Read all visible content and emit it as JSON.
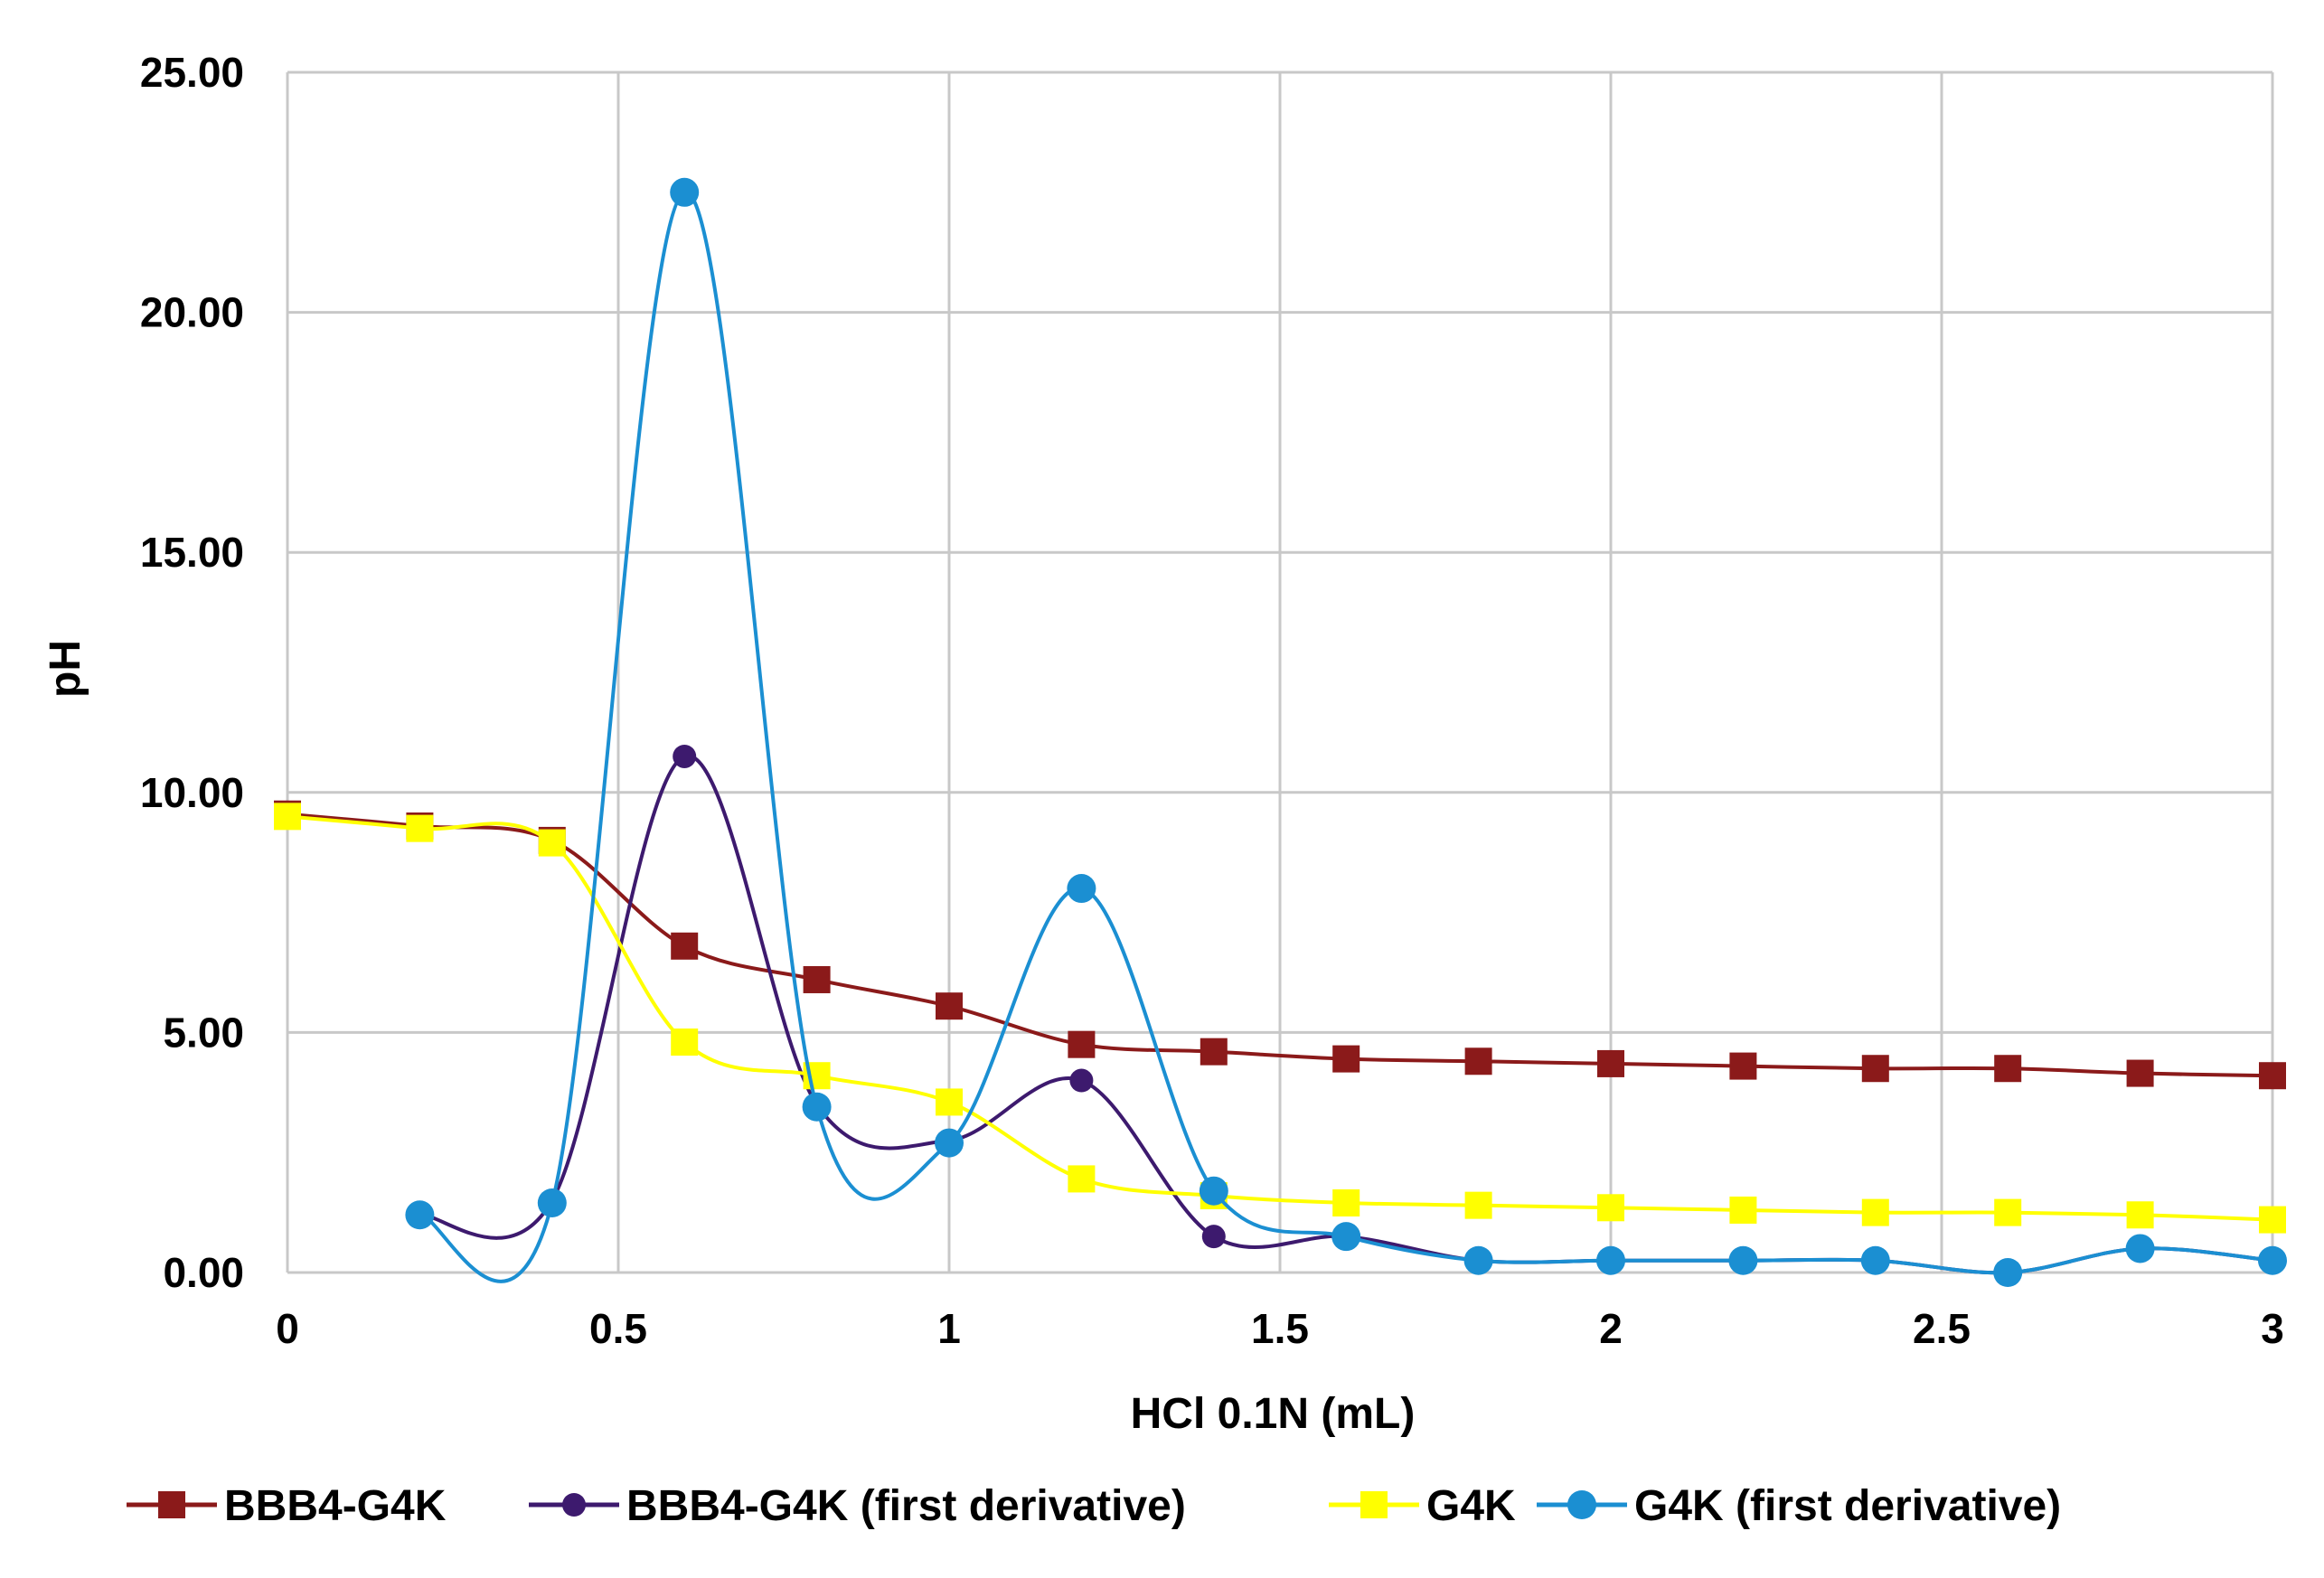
{
  "chart_data": {
    "type": "line",
    "title": "",
    "xlabel": "HCl 0.1N (mL)",
    "ylabel": "pH",
    "xlim": [
      0,
      3
    ],
    "ylim": [
      0,
      25
    ],
    "x_ticks": [
      0,
      0.5,
      1,
      1.5,
      2,
      2.5,
      3
    ],
    "x_tick_labels": [
      "0",
      "0.5",
      "1",
      "1.5",
      "2",
      "2.5",
      "3"
    ],
    "y_ticks": [
      0,
      5,
      10,
      15,
      20,
      25
    ],
    "y_tick_labels": [
      "0.00",
      "5.00",
      "10.00",
      "15.00",
      "20.00",
      "25.00"
    ],
    "grid": true,
    "legend_position": "bottom",
    "series": [
      {
        "name": "BBB4-G4K",
        "color": "#8B1A1A",
        "marker": "square",
        "x": [
          0,
          0.2,
          0.4,
          0.6,
          0.8,
          1.0,
          1.2,
          1.4,
          1.6,
          1.8,
          2.0,
          2.2,
          2.4,
          2.6,
          2.8,
          3.0
        ],
        "y": [
          9.55,
          9.3,
          9.0,
          6.8,
          6.1,
          5.55,
          4.75,
          4.6,
          4.45,
          4.4,
          4.35,
          4.3,
          4.25,
          4.25,
          4.15,
          4.1
        ]
      },
      {
        "name": "BBB4-G4K (first derivative)",
        "color": "#3D1A6E",
        "marker": "circle-small",
        "x": [
          0.2,
          0.4,
          0.6,
          0.8,
          1.0,
          1.2,
          1.4,
          1.6,
          1.8,
          2.0,
          2.2,
          2.4,
          2.6,
          2.8,
          3.0
        ],
        "y": [
          1.2,
          1.5,
          10.75,
          3.5,
          2.75,
          4.0,
          0.75,
          0.75,
          0.25,
          0.25,
          0.25,
          0.25,
          0.0,
          0.5,
          0.25
        ]
      },
      {
        "name": "G4K",
        "color": "#FFFF00",
        "marker": "square",
        "x": [
          0,
          0.2,
          0.4,
          0.6,
          0.8,
          1.0,
          1.2,
          1.4,
          1.6,
          1.8,
          2.0,
          2.2,
          2.4,
          2.6,
          2.8,
          3.0
        ],
        "y": [
          9.5,
          9.25,
          8.95,
          4.8,
          4.1,
          3.55,
          1.95,
          1.6,
          1.45,
          1.4,
          1.35,
          1.3,
          1.25,
          1.25,
          1.2,
          1.1
        ]
      },
      {
        "name": "G4K (first derivative)",
        "color": "#1B8FD2",
        "marker": "circle",
        "x": [
          0.2,
          0.4,
          0.6,
          0.8,
          1.0,
          1.2,
          1.4,
          1.6,
          1.8,
          2.0,
          2.2,
          2.4,
          2.6,
          2.8,
          3.0
        ],
        "y": [
          1.2,
          1.45,
          22.5,
          3.45,
          2.7,
          8.0,
          1.7,
          0.75,
          0.25,
          0.25,
          0.25,
          0.25,
          0.0,
          0.5,
          0.25
        ]
      }
    ]
  }
}
